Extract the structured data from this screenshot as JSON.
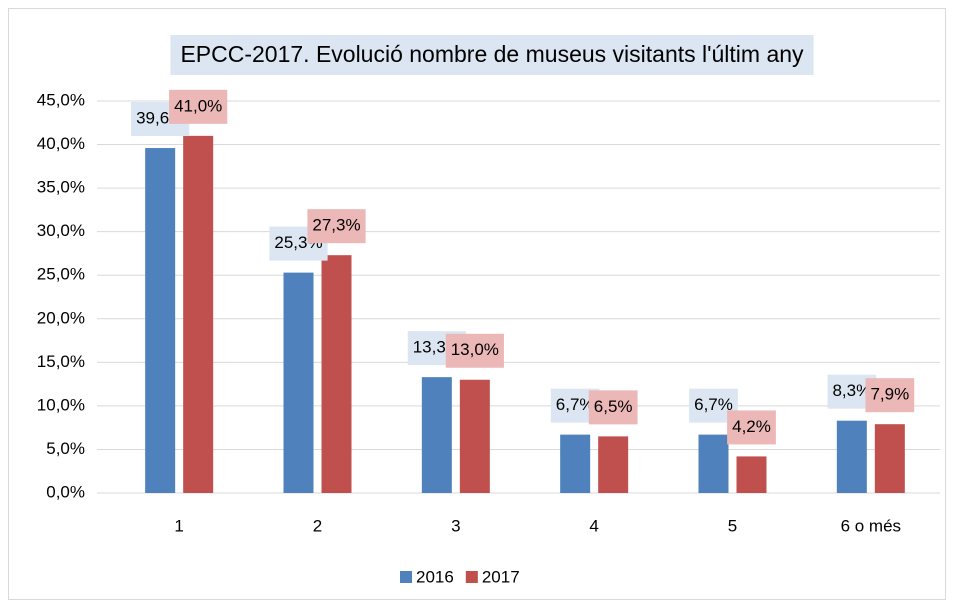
{
  "chart_data": {
    "type": "bar",
    "title": "EPCC-2017. Evolució nombre de museus visitants l'últim any",
    "categories": [
      "1",
      "2",
      "3",
      "4",
      "5",
      "6 o més"
    ],
    "series": [
      {
        "name": "2016",
        "color": "#4f81bd",
        "label_bg": "#dce6f2",
        "values": [
          39.6,
          25.3,
          13.3,
          6.7,
          6.7,
          8.3
        ],
        "value_labels": [
          "39,6%",
          "25,3%",
          "13,3%",
          "6,7%",
          "6,7%",
          "8,3%"
        ]
      },
      {
        "name": "2017",
        "color": "#c0504d",
        "label_bg": "#ebb8b7",
        "values": [
          41.0,
          27.3,
          13.0,
          6.5,
          4.2,
          7.9
        ],
        "value_labels": [
          "41,0%",
          "27,3%",
          "13,0%",
          "6,5%",
          "4,2%",
          "7,9%"
        ]
      }
    ],
    "ylim": [
      0,
      45
    ],
    "yticks": [
      {
        "value": 0,
        "label": "0,0%"
      },
      {
        "value": 5,
        "label": "5,0%"
      },
      {
        "value": 10,
        "label": "10,0%"
      },
      {
        "value": 15,
        "label": "15,0%"
      },
      {
        "value": 20,
        "label": "20,0%"
      },
      {
        "value": 25,
        "label": "25,0%"
      },
      {
        "value": 30,
        "label": "30,0%"
      },
      {
        "value": 35,
        "label": "35,0%"
      },
      {
        "value": 40,
        "label": "40,0%"
      },
      {
        "value": 45,
        "label": "45,0%"
      }
    ],
    "grid": true,
    "legend": "bottom"
  }
}
